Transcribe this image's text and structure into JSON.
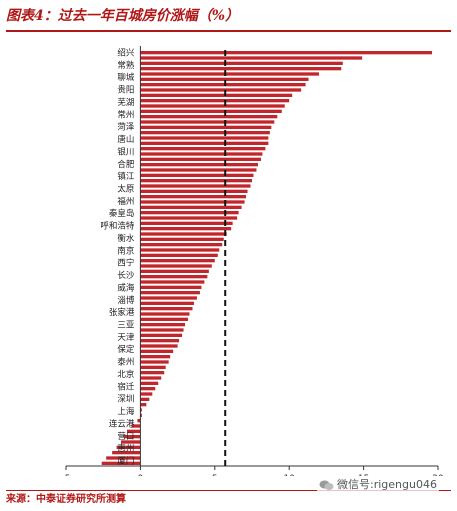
{
  "title": "图表4：过去一年百城房价涨幅（%）",
  "source": "来源：中泰证券研究所测算",
  "watermark": "微信号:rigengu046",
  "colors": {
    "bar": "#c0262b",
    "accent": "#b01818",
    "axis": "#333333",
    "ref_line": "#111111"
  },
  "chart_data": {
    "type": "bar",
    "orientation": "horizontal",
    "title": "过去一年百城房价涨幅（%）",
    "xlim": [
      -5,
      20
    ],
    "x_ticks": [
      -5,
      0,
      5,
      10,
      15,
      20
    ],
    "reference_line": {
      "x": 5.7,
      "style": "dashed"
    },
    "grid": false,
    "legend": "none",
    "labeled_categories": [
      "绍兴",
      "常熟",
      "聊城",
      "贵阳",
      "芜湖",
      "常州",
      "菏泽",
      "唐山",
      "银川",
      "合肥",
      "镇江",
      "太原",
      "福州",
      "秦皇岛",
      "呼和浩特",
      "衡水",
      "南京",
      "西宁",
      "长沙",
      "威海",
      "淄博",
      "张家港",
      "三亚",
      "天津",
      "保定",
      "泰州",
      "北京",
      "宿迁",
      "深圳",
      "上海",
      "连云港",
      "营口",
      "惠州",
      "厦门"
    ],
    "values": [
      19.6,
      14.9,
      13.6,
      13.5,
      12.0,
      11.3,
      11.1,
      10.8,
      10.2,
      10.0,
      9.7,
      9.5,
      9.2,
      9.0,
      8.8,
      8.7,
      8.6,
      8.6,
      8.4,
      8.2,
      8.1,
      7.9,
      7.8,
      7.6,
      7.5,
      7.4,
      7.2,
      7.1,
      7.0,
      6.8,
      6.6,
      6.5,
      6.2,
      6.1,
      5.8,
      5.6,
      5.5,
      5.3,
      5.2,
      5.0,
      4.8,
      4.6,
      4.5,
      4.3,
      4.1,
      4.0,
      3.8,
      3.6,
      3.5,
      3.3,
      3.2,
      3.0,
      2.9,
      2.8,
      2.6,
      2.5,
      2.2,
      2.0,
      1.9,
      1.7,
      1.6,
      1.4,
      1.2,
      1.0,
      0.8,
      0.6,
      0.4,
      0.1,
      0.1,
      -0.2,
      -0.6,
      -0.9,
      -1.1,
      -1.3,
      -1.6,
      -1.9,
      -2.3,
      -2.6
    ]
  }
}
